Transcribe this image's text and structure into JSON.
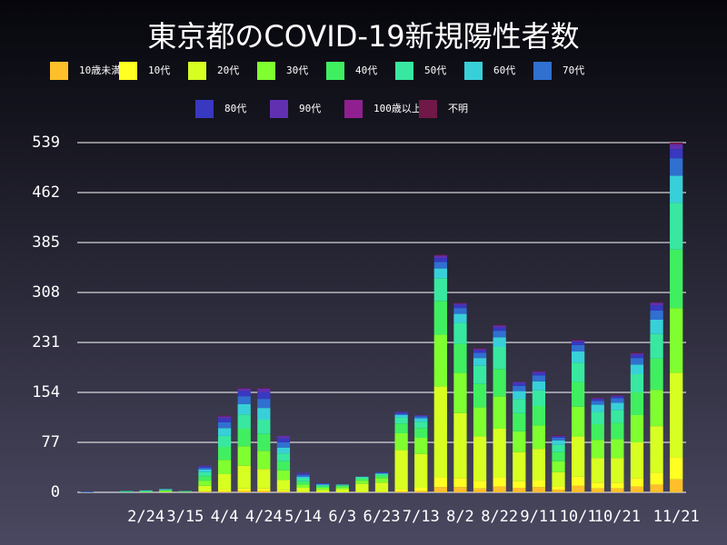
{
  "chart_data": {
    "type": "stacked_bar",
    "title": "東京都のCOVID-19新規陽性者数",
    "categories": [
      null,
      null,
      null,
      "2/24",
      null,
      "3/15",
      null,
      "4/4",
      null,
      "4/24",
      null,
      "5/14",
      null,
      "6/3",
      null,
      "6/23",
      null,
      "7/13",
      null,
      "8/2",
      null,
      "8/22",
      null,
      "9/11",
      null,
      "10/1",
      null,
      "10/21",
      null,
      null,
      "11/21"
    ],
    "ylim": [
      0,
      539
    ],
    "yticks": [
      0,
      77,
      154,
      231,
      308,
      385,
      462,
      539
    ],
    "grid": true,
    "series": [
      {
        "name": "10歳未満",
        "color": "#ffbf2a",
        "values": [
          0,
          0,
          0,
          0,
          0,
          0,
          1,
          1,
          2,
          2,
          1,
          0,
          0,
          0,
          0,
          0,
          1,
          2,
          8,
          8,
          6,
          9,
          7,
          8,
          4,
          10,
          6,
          6,
          9,
          12,
          20
        ]
      },
      {
        "name": "10代",
        "color": "#ffff22",
        "values": [
          0,
          0,
          0,
          0,
          0,
          0,
          1,
          3,
          4,
          4,
          2,
          1,
          0,
          0,
          1,
          1,
          4,
          5,
          15,
          14,
          12,
          14,
          10,
          11,
          5,
          14,
          9,
          9,
          13,
          18,
          34
        ]
      },
      {
        "name": "20代",
        "color": "#d8ff22",
        "values": [
          0,
          0,
          0,
          0,
          1,
          0,
          8,
          24,
          35,
          30,
          16,
          6,
          4,
          5,
          12,
          14,
          60,
          52,
          140,
          100,
          68,
          75,
          45,
          48,
          22,
          62,
          38,
          38,
          55,
          72,
          130
        ]
      },
      {
        "name": "30代",
        "color": "#80ff30",
        "values": [
          0,
          0,
          0,
          1,
          1,
          1,
          8,
          22,
          30,
          28,
          15,
          5,
          3,
          3,
          5,
          7,
          26,
          25,
          80,
          62,
          45,
          50,
          32,
          36,
          17,
          46,
          28,
          29,
          42,
          56,
          100
        ]
      },
      {
        "name": "40代",
        "color": "#40ef60",
        "values": [
          0,
          0,
          1,
          0,
          1,
          0,
          7,
          20,
          27,
          26,
          14,
          5,
          2,
          2,
          3,
          4,
          15,
          15,
          52,
          45,
          36,
          42,
          28,
          30,
          14,
          38,
          24,
          25,
          35,
          48,
          90
        ]
      },
      {
        "name": "50代",
        "color": "#38e8a0",
        "values": [
          0,
          0,
          0,
          1,
          1,
          0,
          6,
          17,
          22,
          22,
          12,
          4,
          2,
          1,
          2,
          2,
          9,
          10,
          35,
          32,
          28,
          34,
          22,
          24,
          11,
          30,
          19,
          20,
          28,
          38,
          72
        ]
      },
      {
        "name": "60代",
        "color": "#38d0d8",
        "values": [
          0,
          0,
          1,
          1,
          1,
          1,
          4,
          12,
          16,
          18,
          9,
          3,
          1,
          1,
          1,
          1,
          4,
          5,
          15,
          14,
          12,
          15,
          12,
          14,
          7,
          17,
          11,
          11,
          15,
          22,
          42
        ]
      },
      {
        "name": "70代",
        "color": "#3070d0",
        "values": [
          1,
          0,
          0,
          0,
          0,
          0,
          3,
          9,
          12,
          14,
          8,
          3,
          1,
          0,
          0,
          1,
          2,
          3,
          10,
          9,
          8,
          10,
          8,
          9,
          4,
          10,
          6,
          7,
          10,
          14,
          27
        ]
      },
      {
        "name": "80代",
        "color": "#3838c0",
        "values": [
          0,
          0,
          0,
          0,
          0,
          0,
          2,
          6,
          8,
          10,
          6,
          2,
          1,
          0,
          0,
          1,
          2,
          1,
          6,
          5,
          4,
          5,
          4,
          4,
          2,
          5,
          3,
          3,
          5,
          8,
          14
        ]
      },
      {
        "name": "90代",
        "color": "#6030b0",
        "values": [
          0,
          0,
          0,
          0,
          0,
          0,
          1,
          3,
          4,
          6,
          4,
          1,
          0,
          0,
          0,
          0,
          1,
          1,
          4,
          2,
          2,
          3,
          2,
          2,
          1,
          2,
          1,
          1,
          2,
          4,
          7
        ]
      },
      {
        "name": "100歳以上",
        "color": "#902090",
        "values": [
          0,
          0,
          0,
          0,
          0,
          0,
          0,
          0,
          0,
          0,
          0,
          0,
          0,
          0,
          0,
          0,
          0,
          0,
          0,
          0,
          0,
          0,
          0,
          0,
          0,
          0,
          0,
          0,
          0,
          0,
          1
        ]
      },
      {
        "name": "不明",
        "color": "#701848",
        "values": [
          0,
          0,
          0,
          0,
          0,
          0,
          0,
          1,
          1,
          1,
          0,
          0,
          0,
          0,
          0,
          0,
          0,
          0,
          1,
          1,
          1,
          1,
          0,
          1,
          1,
          1,
          1,
          1,
          1,
          1,
          2
        ]
      }
    ]
  }
}
